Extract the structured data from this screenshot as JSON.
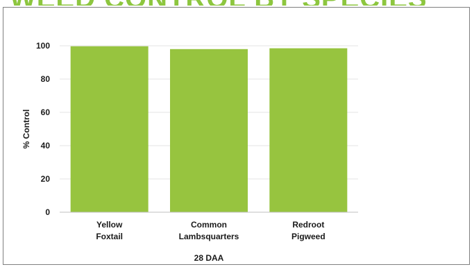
{
  "header": {
    "banner_text": "WEED CONTROL BY SPECIES",
    "banner_color": "#8dc63f"
  },
  "chart_data": {
    "type": "bar",
    "categories": [
      [
        "Yellow",
        "Foxtail"
      ],
      [
        "Common",
        "Lambsquarters"
      ],
      [
        "Redroot",
        "Pigweed"
      ]
    ],
    "values": [
      99.7,
      98.0,
      98.5
    ],
    "xlabel": "28 DAA",
    "ylabel": "% Control",
    "ylim": [
      0,
      100
    ],
    "yticks": [
      0,
      20,
      40,
      60,
      80,
      100
    ],
    "bar_color": "#97c43f",
    "grid": true,
    "grid_color": "#e3e3e3"
  }
}
